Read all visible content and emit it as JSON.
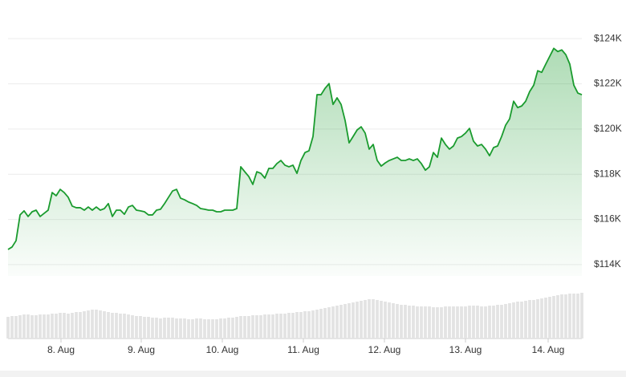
{
  "chart_data": {
    "type": "line",
    "series": [
      {
        "color": "#1a9b2e",
        "values": [
          114670,
          114780,
          115060,
          116200,
          116380,
          116130,
          116340,
          116410,
          116130,
          116270,
          116410,
          117190,
          117050,
          117330,
          117190,
          116980,
          116590,
          116520,
          116520,
          116410,
          116550,
          116410,
          116550,
          116410,
          116480,
          116700,
          116130,
          116410,
          116410,
          116230,
          116550,
          116620,
          116410,
          116380,
          116340,
          116200,
          116200,
          116410,
          116450,
          116700,
          116980,
          117260,
          117330,
          116940,
          116870,
          116770,
          116700,
          116620,
          116480,
          116450,
          116410,
          116410,
          116340,
          116340,
          116410,
          116410,
          116410,
          116480,
          118330,
          118110,
          117900,
          117550,
          118110,
          118040,
          117830,
          118260,
          118260,
          118470,
          118610,
          118400,
          118330,
          118400,
          118040,
          118610,
          118960,
          119040,
          119670,
          121520,
          121520,
          121800,
          122010,
          121090,
          121380,
          121090,
          120380,
          119390,
          119670,
          119960,
          120100,
          119820,
          119110,
          119320,
          118610,
          118360,
          118500,
          118610,
          118680,
          118750,
          118610,
          118610,
          118680,
          118610,
          118680,
          118470,
          118180,
          118330,
          118960,
          118750,
          119600,
          119320,
          119110,
          119250,
          119600,
          119670,
          119820,
          120030,
          119460,
          119250,
          119320,
          119110,
          118820,
          119180,
          119250,
          119670,
          120170,
          120450,
          121230,
          120950,
          121020,
          121230,
          121660,
          121940,
          122580,
          122510,
          122870,
          123220,
          123570,
          123430,
          123500,
          123290,
          122870,
          121940,
          121590,
          121520
        ]
      },
      {
        "type": "bar",
        "axis": "y2",
        "color": "#e3e3e3",
        "values": [
          27,
          28,
          28,
          29,
          30,
          30,
          29,
          29,
          30,
          30,
          30,
          31,
          31,
          32,
          32,
          31,
          32,
          33,
          33,
          34,
          35,
          36,
          36,
          35,
          34,
          33,
          32,
          32,
          31,
          31,
          30,
          29,
          28,
          28,
          27,
          27,
          26,
          26,
          25,
          26,
          26,
          26,
          25,
          25,
          25,
          24,
          24,
          25,
          25,
          24,
          24,
          24,
          24,
          25,
          25,
          26,
          26,
          27,
          28,
          28,
          28,
          29,
          29,
          29,
          30,
          30,
          30,
          31,
          31,
          31,
          32,
          32,
          33,
          33,
          34,
          34,
          35,
          36,
          37,
          38,
          39,
          40,
          41,
          42,
          43,
          44,
          45,
          46,
          47,
          48,
          49,
          49,
          48,
          47,
          46,
          45,
          44,
          43,
          42,
          42,
          41,
          41,
          40,
          40,
          40,
          40,
          39,
          39,
          39,
          40,
          40,
          40,
          40,
          40,
          40,
          41,
          41,
          41,
          40,
          40,
          41,
          41,
          42,
          42,
          43,
          44,
          45,
          46,
          46,
          47,
          48,
          48,
          49,
          50,
          51,
          52,
          53,
          54,
          55,
          55,
          56,
          56,
          56,
          57
        ]
      }
    ],
    "xlim": [
      0,
      143
    ],
    "xticks": [
      {
        "value": 13.2,
        "label": "8. Aug"
      },
      {
        "value": 33.2,
        "label": "9. Aug"
      },
      {
        "value": 53.4,
        "label": "10. Aug"
      },
      {
        "value": 73.6,
        "label": "11. Aug"
      },
      {
        "value": 93.8,
        "label": "12. Aug"
      },
      {
        "value": 114,
        "label": "13. Aug"
      },
      {
        "value": 134.6,
        "label": "14. Aug"
      }
    ],
    "ylim": [
      113500,
      125000
    ],
    "yticks": [
      {
        "value": 114000,
        "label": "$114K"
      },
      {
        "value": 116000,
        "label": "$116K"
      },
      {
        "value": 118000,
        "label": "$118K"
      },
      {
        "value": 120000,
        "label": "$120K"
      },
      {
        "value": 122000,
        "label": "$122K"
      },
      {
        "value": 124000,
        "label": "$124K"
      }
    ],
    "y2lim": [
      0,
      60
    ],
    "grid": true
  }
}
